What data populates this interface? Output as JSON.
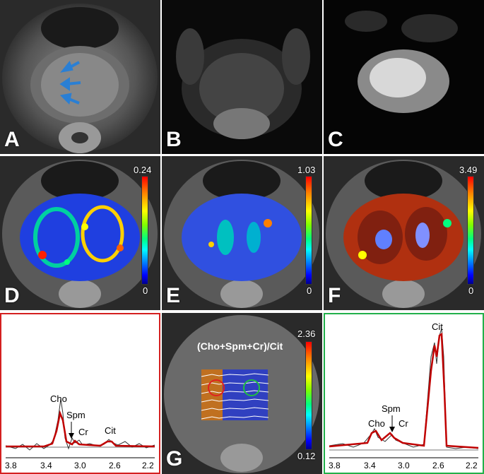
{
  "panels": {
    "A": {
      "label": "A"
    },
    "B": {
      "label": "B"
    },
    "C": {
      "label": "C"
    },
    "D": {
      "label": "D",
      "colorbar_max": "0.24",
      "colorbar_min": "0"
    },
    "E": {
      "label": "E",
      "colorbar_max": "1.03",
      "colorbar_min": "0"
    },
    "F": {
      "label": "F",
      "colorbar_max": "3.49",
      "colorbar_min": "0"
    },
    "G": {
      "label": "G",
      "title": "(Cho+Spm+Cr)/Cit",
      "colorbar_max": "2.36",
      "colorbar_min": "0.12"
    }
  },
  "spectrum_left": {
    "border_color": "#d42020",
    "peaks": [
      "Cho",
      "Spm",
      "Cr",
      "Cit"
    ],
    "ticks": [
      "3.8",
      "3.4",
      "3.0",
      "2.6",
      "2.2"
    ]
  },
  "spectrum_right": {
    "border_color": "#22b04a",
    "peaks": [
      "Cit",
      "Spm",
      "Cho",
      "Cr"
    ],
    "ticks": [
      "3.8",
      "3.4",
      "3.0",
      "2.6",
      "2.2"
    ]
  },
  "colors": {
    "fit_line": "#c00000",
    "raw_line": "#333333",
    "arrow_blue": "#2a7fd4"
  }
}
